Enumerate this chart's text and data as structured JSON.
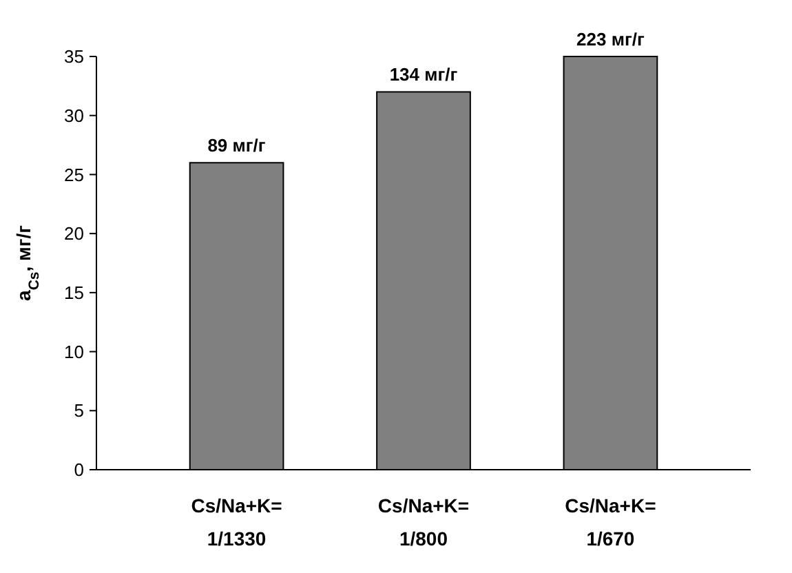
{
  "chart_data": {
    "type": "bar",
    "ylabel": "a$_{Cs}$, мг/г",
    "categories": [
      "Cs/Na+K=\n1/1330",
      "Cs/Na+K=\n1/800",
      "Cs/Na+K=\n1/670"
    ],
    "values": [
      26,
      32,
      35
    ],
    "color": "#808080",
    "annotations": [
      {
        "text": "89 мг/г",
        "x": "Cs/Na+K=\n1/1330",
        "y": 26
      },
      {
        "text": "134 мг/г",
        "x": "Cs/Na+K=\n1/800",
        "y": 32
      },
      {
        "text": "223 мг/г",
        "x": "Cs/Na+K=\n1/670",
        "y": 35
      }
    ],
    "ylim": [
      0,
      35
    ],
    "yticks": [
      0,
      5,
      10,
      15,
      20,
      25,
      30,
      35
    ],
    "grid": false
  }
}
